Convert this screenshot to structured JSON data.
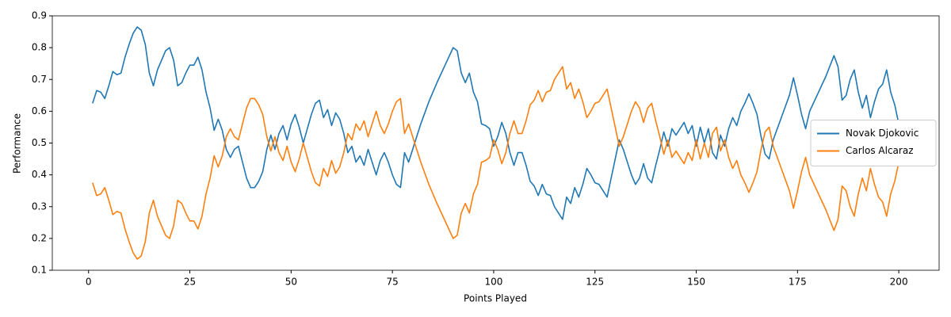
{
  "chart_data": {
    "type": "line",
    "x_label": "Points Played",
    "y_label": "Performance",
    "x": [
      1,
      2,
      3,
      4,
      5,
      6,
      7,
      8,
      9,
      10,
      11,
      12,
      13,
      14,
      15,
      16,
      17,
      18,
      19,
      20,
      21,
      22,
      23,
      24,
      25,
      26,
      27,
      28,
      29,
      30,
      31,
      32,
      33,
      34,
      35,
      36,
      37,
      38,
      39,
      40,
      41,
      42,
      43,
      44,
      45,
      46,
      47,
      48,
      49,
      50,
      51,
      52,
      53,
      54,
      55,
      56,
      57,
      58,
      59,
      60,
      61,
      62,
      63,
      64,
      65,
      66,
      67,
      68,
      69,
      70,
      71,
      72,
      73,
      74,
      75,
      76,
      77,
      78,
      79,
      80,
      82,
      84,
      86,
      88,
      90,
      91,
      92,
      93,
      94,
      95,
      96,
      97,
      98,
      99,
      100,
      101,
      102,
      103,
      104,
      105,
      106,
      107,
      108,
      109,
      110,
      111,
      112,
      113,
      114,
      115,
      116,
      117,
      118,
      119,
      120,
      121,
      122,
      123,
      124,
      125,
      126,
      127,
      128,
      129,
      130,
      131,
      132,
      133,
      134,
      135,
      136,
      137,
      138,
      139,
      140,
      141,
      142,
      143,
      144,
      145,
      146,
      147,
      148,
      149,
      150,
      151,
      152,
      153,
      154,
      155,
      156,
      157,
      158,
      159,
      160,
      161,
      162,
      163,
      164,
      165,
      166,
      167,
      168,
      169,
      171,
      173,
      174,
      175,
      176,
      177,
      178,
      180,
      182,
      184,
      185,
      186,
      187,
      188,
      189,
      190,
      191,
      192,
      193,
      194,
      195,
      196,
      197,
      198,
      199,
      200
    ],
    "series": [
      {
        "name": "Novak Djokovic",
        "color": "#1f77b4",
        "values": [
          0.625,
          0.665,
          0.66,
          0.64,
          0.68,
          0.725,
          0.715,
          0.72,
          0.77,
          0.81,
          0.845,
          0.865,
          0.855,
          0.81,
          0.72,
          0.68,
          0.73,
          0.76,
          0.79,
          0.8,
          0.76,
          0.68,
          0.69,
          0.72,
          0.745,
          0.745,
          0.77,
          0.73,
          0.66,
          0.61,
          0.54,
          0.575,
          0.54,
          0.48,
          0.455,
          0.48,
          0.49,
          0.44,
          0.39,
          0.36,
          0.36,
          0.38,
          0.41,
          0.48,
          0.525,
          0.48,
          0.53,
          0.555,
          0.51,
          0.56,
          0.59,
          0.55,
          0.5,
          0.545,
          0.59,
          0.625,
          0.635,
          0.58,
          0.605,
          0.555,
          0.595,
          0.575,
          0.53,
          0.47,
          0.49,
          0.44,
          0.46,
          0.43,
          0.48,
          0.44,
          0.4,
          0.445,
          0.47,
          0.44,
          0.4,
          0.37,
          0.36,
          0.47,
          0.44,
          0.48,
          0.56,
          0.63,
          0.69,
          0.745,
          0.8,
          0.79,
          0.72,
          0.69,
          0.72,
          0.66,
          0.63,
          0.56,
          0.555,
          0.545,
          0.49,
          0.52,
          0.565,
          0.53,
          0.47,
          0.43,
          0.47,
          0.47,
          0.43,
          0.38,
          0.365,
          0.335,
          0.37,
          0.34,
          0.335,
          0.3,
          0.28,
          0.26,
          0.33,
          0.31,
          0.36,
          0.33,
          0.37,
          0.42,
          0.4,
          0.375,
          0.37,
          0.35,
          0.33,
          0.39,
          0.45,
          0.51,
          0.48,
          0.44,
          0.4,
          0.37,
          0.39,
          0.435,
          0.39,
          0.375,
          0.43,
          0.48,
          0.535,
          0.49,
          0.545,
          0.525,
          0.545,
          0.565,
          0.53,
          0.555,
          0.49,
          0.55,
          0.5,
          0.545,
          0.47,
          0.45,
          0.525,
          0.49,
          0.545,
          0.58,
          0.555,
          0.6,
          0.625,
          0.655,
          0.625,
          0.59,
          0.52,
          0.465,
          0.45,
          0.51,
          0.58,
          0.65,
          0.705,
          0.65,
          0.59,
          0.545,
          0.6,
          0.655,
          0.71,
          0.775,
          0.74,
          0.635,
          0.65,
          0.7,
          0.73,
          0.66,
          0.61,
          0.65,
          0.58,
          0.63,
          0.67,
          0.685,
          0.73,
          0.66,
          0.62,
          0.56
        ]
      },
      {
        "name": "Carlos Alcaraz",
        "color": "#ff7f0e",
        "values": [
          0.375,
          0.335,
          0.34,
          0.36,
          0.32,
          0.275,
          0.285,
          0.28,
          0.23,
          0.19,
          0.155,
          0.135,
          0.145,
          0.19,
          0.28,
          0.32,
          0.27,
          0.24,
          0.21,
          0.2,
          0.24,
          0.32,
          0.31,
          0.28,
          0.255,
          0.255,
          0.23,
          0.27,
          0.34,
          0.39,
          0.46,
          0.425,
          0.46,
          0.52,
          0.545,
          0.52,
          0.51,
          0.56,
          0.61,
          0.64,
          0.64,
          0.62,
          0.59,
          0.52,
          0.475,
          0.52,
          0.47,
          0.445,
          0.49,
          0.44,
          0.41,
          0.45,
          0.5,
          0.455,
          0.41,
          0.375,
          0.365,
          0.42,
          0.395,
          0.445,
          0.405,
          0.425,
          0.47,
          0.53,
          0.51,
          0.56,
          0.54,
          0.57,
          0.52,
          0.56,
          0.6,
          0.555,
          0.53,
          0.56,
          0.6,
          0.63,
          0.64,
          0.53,
          0.56,
          0.52,
          0.44,
          0.37,
          0.31,
          0.255,
          0.2,
          0.21,
          0.28,
          0.31,
          0.28,
          0.34,
          0.37,
          0.44,
          0.445,
          0.455,
          0.51,
          0.48,
          0.435,
          0.47,
          0.53,
          0.57,
          0.53,
          0.53,
          0.57,
          0.62,
          0.635,
          0.665,
          0.63,
          0.66,
          0.665,
          0.7,
          0.72,
          0.74,
          0.67,
          0.69,
          0.64,
          0.67,
          0.63,
          0.58,
          0.6,
          0.625,
          0.63,
          0.65,
          0.67,
          0.61,
          0.55,
          0.49,
          0.52,
          0.56,
          0.6,
          0.63,
          0.61,
          0.565,
          0.61,
          0.625,
          0.57,
          0.52,
          0.465,
          0.51,
          0.455,
          0.475,
          0.455,
          0.435,
          0.47,
          0.445,
          0.51,
          0.45,
          0.5,
          0.455,
          0.53,
          0.55,
          0.475,
          0.51,
          0.455,
          0.42,
          0.445,
          0.4,
          0.375,
          0.345,
          0.375,
          0.41,
          0.48,
          0.535,
          0.55,
          0.49,
          0.42,
          0.35,
          0.295,
          0.35,
          0.41,
          0.455,
          0.4,
          0.345,
          0.29,
          0.225,
          0.26,
          0.365,
          0.35,
          0.3,
          0.27,
          0.34,
          0.39,
          0.35,
          0.42,
          0.37,
          0.33,
          0.315,
          0.27,
          0.34,
          0.38,
          0.44
        ]
      }
    ],
    "xlim": [
      -8.95,
      209.95
    ],
    "xticks": [
      0,
      25,
      50,
      75,
      100,
      125,
      150,
      175,
      200
    ],
    "ylim": [
      0.1,
      0.9
    ],
    "yticks": [
      0.1,
      0.2,
      0.3,
      0.4,
      0.5,
      0.6,
      0.7,
      0.8,
      0.9
    ],
    "grid": false,
    "legend": "right"
  }
}
